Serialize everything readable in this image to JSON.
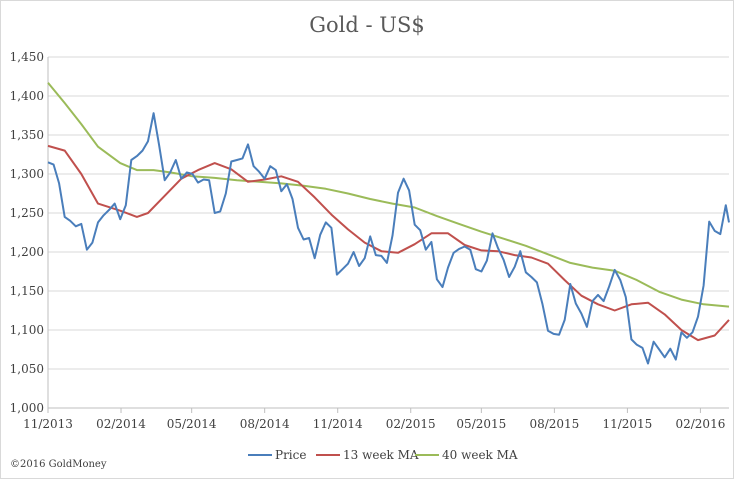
{
  "chart_data": {
    "type": "line",
    "title": "Gold - US$",
    "xlabel": "",
    "ylabel": "",
    "ylim": [
      1000,
      1450
    ],
    "y_ticks": [
      1000,
      1050,
      1100,
      1150,
      1200,
      1250,
      1300,
      1350,
      1400,
      1450
    ],
    "y_tick_labels": [
      "1,000",
      "1,050",
      "1,100",
      "1,150",
      "1,200",
      "1,250",
      "1,300",
      "1,350",
      "1,400",
      "1,450"
    ],
    "x_range": [
      "2013-11-01",
      "2016-03-08"
    ],
    "x_ticks": [
      "2013-11-01",
      "2014-02-01",
      "2014-05-01",
      "2014-08-01",
      "2014-11-01",
      "2015-02-01",
      "2015-05-01",
      "2015-08-01",
      "2015-11-01",
      "2016-02-01"
    ],
    "x_tick_labels": [
      "11/2013",
      "02/2014",
      "05/2014",
      "08/2014",
      "11/2014",
      "02/2015",
      "05/2015",
      "08/2015",
      "11/2015",
      "02/2016"
    ],
    "grid": "horizontal",
    "legend_position": "bottom",
    "source_note": "©2016 GoldMoney",
    "series": [
      {
        "name": "Price",
        "color": "#4a7ebb",
        "points": [
          [
            "2013-11-01",
            1315
          ],
          [
            "2013-11-08",
            1312
          ],
          [
            "2013-11-15",
            1288
          ],
          [
            "2013-11-22",
            1245
          ],
          [
            "2013-11-29",
            1240
          ],
          [
            "2013-12-06",
            1233
          ],
          [
            "2013-12-13",
            1236
          ],
          [
            "2013-12-20",
            1203
          ],
          [
            "2013-12-27",
            1212
          ],
          [
            "2014-01-03",
            1238
          ],
          [
            "2014-01-10",
            1247
          ],
          [
            "2014-01-17",
            1254
          ],
          [
            "2014-01-24",
            1262
          ],
          [
            "2014-01-31",
            1242
          ],
          [
            "2014-02-07",
            1260
          ],
          [
            "2014-02-14",
            1318
          ],
          [
            "2014-02-21",
            1323
          ],
          [
            "2014-02-28",
            1330
          ],
          [
            "2014-03-07",
            1342
          ],
          [
            "2014-03-14",
            1378
          ],
          [
            "2014-03-21",
            1337
          ],
          [
            "2014-03-28",
            1292
          ],
          [
            "2014-04-04",
            1302
          ],
          [
            "2014-04-11",
            1318
          ],
          [
            "2014-04-18",
            1294
          ],
          [
            "2014-04-25",
            1302
          ],
          [
            "2014-05-02",
            1300
          ],
          [
            "2014-05-09",
            1289
          ],
          [
            "2014-05-16",
            1293
          ],
          [
            "2014-05-23",
            1292
          ],
          [
            "2014-05-30",
            1250
          ],
          [
            "2014-06-06",
            1252
          ],
          [
            "2014-06-13",
            1275
          ],
          [
            "2014-06-20",
            1316
          ],
          [
            "2014-06-27",
            1318
          ],
          [
            "2014-07-04",
            1320
          ],
          [
            "2014-07-11",
            1338
          ],
          [
            "2014-07-18",
            1310
          ],
          [
            "2014-07-25",
            1303
          ],
          [
            "2014-08-01",
            1294
          ],
          [
            "2014-08-08",
            1310
          ],
          [
            "2014-08-15",
            1305
          ],
          [
            "2014-08-22",
            1278
          ],
          [
            "2014-08-29",
            1287
          ],
          [
            "2014-09-05",
            1268
          ],
          [
            "2014-09-12",
            1231
          ],
          [
            "2014-09-19",
            1216
          ],
          [
            "2014-09-26",
            1218
          ],
          [
            "2014-10-03",
            1192
          ],
          [
            "2014-10-10",
            1222
          ],
          [
            "2014-10-17",
            1238
          ],
          [
            "2014-10-24",
            1231
          ],
          [
            "2014-10-31",
            1171
          ],
          [
            "2014-11-07",
            1178
          ],
          [
            "2014-11-14",
            1185
          ],
          [
            "2014-11-21",
            1200
          ],
          [
            "2014-11-28",
            1182
          ],
          [
            "2014-12-05",
            1192
          ],
          [
            "2014-12-12",
            1220
          ],
          [
            "2014-12-19",
            1196
          ],
          [
            "2014-12-26",
            1195
          ],
          [
            "2015-01-02",
            1186
          ],
          [
            "2015-01-09",
            1221
          ],
          [
            "2015-01-16",
            1276
          ],
          [
            "2015-01-23",
            1294
          ],
          [
            "2015-01-30",
            1279
          ],
          [
            "2015-02-06",
            1235
          ],
          [
            "2015-02-13",
            1228
          ],
          [
            "2015-02-20",
            1203
          ],
          [
            "2015-02-27",
            1213
          ],
          [
            "2015-03-06",
            1165
          ],
          [
            "2015-03-13",
            1155
          ],
          [
            "2015-03-20",
            1180
          ],
          [
            "2015-03-27",
            1199
          ],
          [
            "2015-04-03",
            1204
          ],
          [
            "2015-04-10",
            1207
          ],
          [
            "2015-04-17",
            1203
          ],
          [
            "2015-04-24",
            1178
          ],
          [
            "2015-05-01",
            1175
          ],
          [
            "2015-05-08",
            1189
          ],
          [
            "2015-05-15",
            1224
          ],
          [
            "2015-05-22",
            1205
          ],
          [
            "2015-05-29",
            1190
          ],
          [
            "2015-06-05",
            1168
          ],
          [
            "2015-06-12",
            1181
          ],
          [
            "2015-06-19",
            1201
          ],
          [
            "2015-06-26",
            1174
          ],
          [
            "2015-07-03",
            1168
          ],
          [
            "2015-07-10",
            1161
          ],
          [
            "2015-07-17",
            1133
          ],
          [
            "2015-07-24",
            1099
          ],
          [
            "2015-07-31",
            1095
          ],
          [
            "2015-08-07",
            1094
          ],
          [
            "2015-08-14",
            1113
          ],
          [
            "2015-08-21",
            1159
          ],
          [
            "2015-08-28",
            1134
          ],
          [
            "2015-09-04",
            1121
          ],
          [
            "2015-09-11",
            1104
          ],
          [
            "2015-09-18",
            1137
          ],
          [
            "2015-09-25",
            1145
          ],
          [
            "2015-10-02",
            1137
          ],
          [
            "2015-10-09",
            1156
          ],
          [
            "2015-10-16",
            1177
          ],
          [
            "2015-10-23",
            1164
          ],
          [
            "2015-10-30",
            1142
          ],
          [
            "2015-11-06",
            1088
          ],
          [
            "2015-11-13",
            1081
          ],
          [
            "2015-11-20",
            1077
          ],
          [
            "2015-11-27",
            1057
          ],
          [
            "2015-12-04",
            1085
          ],
          [
            "2015-12-11",
            1075
          ],
          [
            "2015-12-18",
            1065
          ],
          [
            "2015-12-25",
            1076
          ],
          [
            "2016-01-01",
            1062
          ],
          [
            "2016-01-08",
            1097
          ],
          [
            "2016-01-15",
            1090
          ],
          [
            "2016-01-22",
            1097
          ],
          [
            "2016-01-29",
            1117
          ],
          [
            "2016-02-05",
            1157
          ],
          [
            "2016-02-12",
            1239
          ],
          [
            "2016-02-19",
            1227
          ],
          [
            "2016-02-26",
            1223
          ],
          [
            "2016-03-04",
            1260
          ],
          [
            "2016-03-08",
            1238
          ]
        ]
      },
      {
        "name": "13 week MA",
        "color": "#c0504d",
        "points": [
          [
            "2013-11-01",
            1336
          ],
          [
            "2013-11-22",
            1330
          ],
          [
            "2013-12-13",
            1300
          ],
          [
            "2014-01-03",
            1262
          ],
          [
            "2014-01-31",
            1253
          ],
          [
            "2014-02-21",
            1245
          ],
          [
            "2014-03-07",
            1250
          ],
          [
            "2014-03-28",
            1272
          ],
          [
            "2014-04-18",
            1294
          ],
          [
            "2014-05-09",
            1305
          ],
          [
            "2014-05-30",
            1314
          ],
          [
            "2014-06-20",
            1306
          ],
          [
            "2014-07-11",
            1290
          ],
          [
            "2014-08-01",
            1293
          ],
          [
            "2014-08-22",
            1297
          ],
          [
            "2014-09-12",
            1290
          ],
          [
            "2014-10-03",
            1270
          ],
          [
            "2014-10-24",
            1248
          ],
          [
            "2014-11-14",
            1229
          ],
          [
            "2014-12-05",
            1212
          ],
          [
            "2014-12-26",
            1201
          ],
          [
            "2015-01-16",
            1199
          ],
          [
            "2015-02-06",
            1210
          ],
          [
            "2015-02-27",
            1224
          ],
          [
            "2015-03-20",
            1224
          ],
          [
            "2015-04-10",
            1209
          ],
          [
            "2015-05-01",
            1202
          ],
          [
            "2015-05-22",
            1201
          ],
          [
            "2015-06-12",
            1196
          ],
          [
            "2015-07-03",
            1193
          ],
          [
            "2015-07-24",
            1185
          ],
          [
            "2015-08-14",
            1164
          ],
          [
            "2015-09-04",
            1144
          ],
          [
            "2015-09-25",
            1133
          ],
          [
            "2015-10-16",
            1125
          ],
          [
            "2015-11-06",
            1133
          ],
          [
            "2015-11-27",
            1135
          ],
          [
            "2015-12-18",
            1120
          ],
          [
            "2016-01-08",
            1100
          ],
          [
            "2016-01-29",
            1087
          ],
          [
            "2016-02-19",
            1093
          ],
          [
            "2016-03-08",
            1113
          ]
        ]
      },
      {
        "name": "40 week MA",
        "color": "#9bbb59",
        "points": [
          [
            "2013-11-01",
            1417
          ],
          [
            "2013-11-22",
            1391
          ],
          [
            "2013-12-13",
            1364
          ],
          [
            "2014-01-03",
            1335
          ],
          [
            "2014-01-31",
            1314
          ],
          [
            "2014-02-21",
            1305
          ],
          [
            "2014-03-14",
            1305
          ],
          [
            "2014-04-04",
            1302
          ],
          [
            "2014-05-02",
            1297
          ],
          [
            "2014-05-30",
            1295
          ],
          [
            "2014-06-27",
            1292
          ],
          [
            "2014-07-25",
            1290
          ],
          [
            "2014-08-22",
            1288
          ],
          [
            "2014-09-19",
            1285
          ],
          [
            "2014-10-17",
            1281
          ],
          [
            "2014-11-14",
            1275
          ],
          [
            "2014-12-12",
            1268
          ],
          [
            "2015-01-09",
            1262
          ],
          [
            "2015-02-06",
            1257
          ],
          [
            "2015-03-06",
            1246
          ],
          [
            "2015-04-03",
            1236
          ],
          [
            "2015-05-01",
            1226
          ],
          [
            "2015-05-29",
            1217
          ],
          [
            "2015-06-26",
            1208
          ],
          [
            "2015-07-24",
            1197
          ],
          [
            "2015-08-21",
            1186
          ],
          [
            "2015-09-18",
            1180
          ],
          [
            "2015-10-16",
            1176
          ],
          [
            "2015-11-13",
            1164
          ],
          [
            "2015-12-11",
            1149
          ],
          [
            "2016-01-08",
            1139
          ],
          [
            "2016-02-05",
            1133
          ],
          [
            "2016-03-08",
            1130
          ]
        ]
      }
    ]
  }
}
